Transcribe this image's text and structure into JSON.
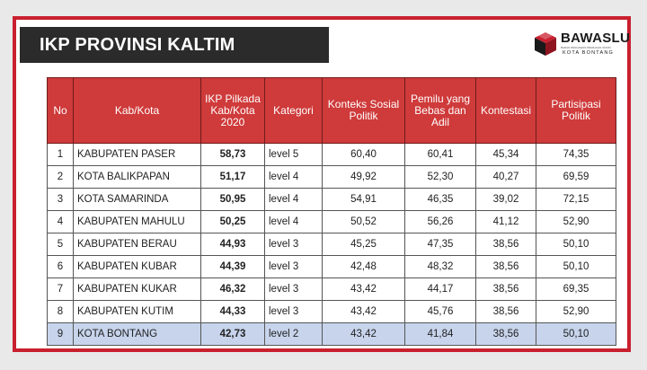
{
  "title": "IKP PROVINSI KALTIM",
  "logo": {
    "name": "BAWASLU",
    "tagline": "BADAN PENGAWAS PEMILIHAN UMUM",
    "city": "KOTA BONTANG",
    "colors": {
      "red": "#c9202f",
      "dark": "#1a1a1a"
    }
  },
  "table": {
    "headers": {
      "no": "No",
      "kab": "Kab/Kota",
      "ikp": "IKP Pilkada Kab/Kota 2020",
      "kategori": "Kategori",
      "konteks": "Konteks Sosial Politik",
      "pemilu": "Pemilu yang Bebas dan Adil",
      "kontestasi": "Kontestasi",
      "partisipasi": "Partisipasi Politik"
    },
    "rows": [
      {
        "no": "1",
        "name": "KABUPATEN PASER",
        "ikp": "58,73",
        "kategori": "level 5",
        "konteks": "60,40",
        "pemilu": "60,41",
        "kontestasi": "45,34",
        "partisipasi": "74,35"
      },
      {
        "no": "2",
        "name": "KOTA BALIKPAPAN",
        "ikp": "51,17",
        "kategori": "level 4",
        "konteks": "49,92",
        "pemilu": "52,30",
        "kontestasi": "40,27",
        "partisipasi": "69,59"
      },
      {
        "no": "3",
        "name": "KOTA SAMARINDA",
        "ikp": "50,95",
        "kategori": "level 4",
        "konteks": "54,91",
        "pemilu": "46,35",
        "kontestasi": "39,02",
        "partisipasi": "72,15"
      },
      {
        "no": "4",
        "name": "KABUPATEN MAHULU",
        "ikp": "50,25",
        "kategori": "level 4",
        "konteks": "50,52",
        "pemilu": "56,26",
        "kontestasi": "41,12",
        "partisipasi": "52,90"
      },
      {
        "no": "5",
        "name": "KABUPATEN BERAU",
        "ikp": "44,93",
        "kategori": "level 3",
        "konteks": "45,25",
        "pemilu": "47,35",
        "kontestasi": "38,56",
        "partisipasi": "50,10"
      },
      {
        "no": "6",
        "name": "KABUPATEN KUBAR",
        "ikp": "44,39",
        "kategori": "level 3",
        "konteks": "42,48",
        "pemilu": "48,32",
        "kontestasi": "38,56",
        "partisipasi": "50,10"
      },
      {
        "no": "7",
        "name": "KABUPATEN KUKAR",
        "ikp": "46,32",
        "kategori": "level 3",
        "konteks": "43,42",
        "pemilu": "44,17",
        "kontestasi": "38,56",
        "partisipasi": "69,35"
      },
      {
        "no": "8",
        "name": "KABUPATEN KUTIM",
        "ikp": "44,33",
        "kategori": "level 3",
        "konteks": "43,42",
        "pemilu": "45,76",
        "kontestasi": "38,56",
        "partisipasi": "52,90"
      },
      {
        "no": "9",
        "name": "KOTA BONTANG",
        "ikp": "42,73",
        "kategori": "level 2",
        "konteks": "43,42",
        "pemilu": "41,84",
        "kontestasi": "38,56",
        "partisipasi": "50,10",
        "highlighted": true
      }
    ],
    "header_color": "#cf3a3a",
    "highlight_color": "#c7d4ec"
  }
}
